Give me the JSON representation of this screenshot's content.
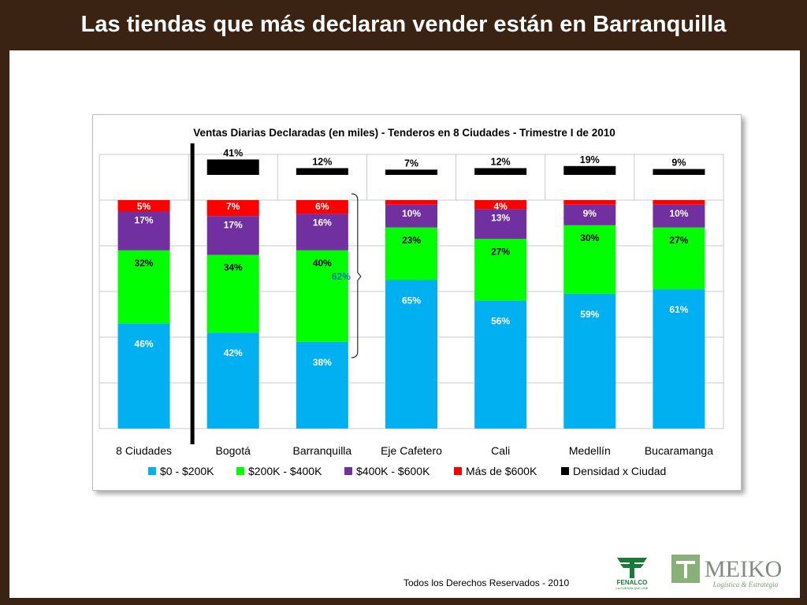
{
  "slide": {
    "title": "Las tiendas que más declaran vender están en Barranquilla",
    "footer": "Todos los Derechos Reservados - 2010",
    "logos": [
      {
        "name": "fenalco-logo",
        "text": "FENALCO",
        "tagline": "LA FUERZA QUE UNE"
      },
      {
        "name": "meiko-logo",
        "text": "MEIKO",
        "tagline": "Logística & Estrategia"
      }
    ]
  },
  "colors": {
    "background": "#3b2314",
    "s0": "#00b0f0",
    "s1": "#00ff00",
    "s2": "#7030a0",
    "s3": "#ff0000",
    "density": "#000000",
    "bracket_label": "#1f6fb5"
  },
  "chart_data": {
    "type": "bar",
    "stacked": true,
    "title": "Ventas Diarias Declaradas (en miles) - Tenderos en 8 Ciudades - Trimestre I de 2010",
    "categories": [
      "8 Ciudades",
      "Bogotá",
      "Barranquilla",
      "Eje Cafetero",
      "Cali",
      "Medellín",
      "Bucaramanga"
    ],
    "series": [
      {
        "name": "$0 - $200K",
        "color": "#00b0f0",
        "values": [
          46,
          42,
          38,
          65,
          56,
          59,
          61
        ]
      },
      {
        "name": "$200K - $400K",
        "color": "#00ff00",
        "values": [
          32,
          34,
          40,
          23,
          27,
          30,
          27
        ]
      },
      {
        "name": "$400K - $600K",
        "color": "#7030a0",
        "values": [
          17,
          17,
          16,
          10,
          13,
          9,
          10
        ]
      },
      {
        "name": "Más de $600K",
        "color": "#ff0000",
        "values": [
          5,
          7,
          6,
          2,
          4,
          2,
          2
        ]
      }
    ],
    "value_labels": [
      [
        "46%",
        "42%",
        "38%",
        "65%",
        "56%",
        "59%",
        "61%"
      ],
      [
        "32%",
        "34%",
        "40%",
        "23%",
        "27%",
        "30%",
        "27%"
      ],
      [
        "17%",
        "17%",
        "16%",
        "10%",
        "13%",
        "9%",
        "10%"
      ],
      [
        "5%",
        "7%",
        "6%",
        "",
        "4%",
        "",
        ""
      ]
    ],
    "density": {
      "name": "Densidad x Ciudad",
      "color": "#000000",
      "categories": [
        "Bogotá",
        "Barranquilla",
        "Eje Cafetero",
        "Cali",
        "Medellín",
        "Bucaramanga"
      ],
      "values": [
        41,
        12,
        7,
        12,
        19,
        9
      ],
      "labels": [
        "41%",
        "12%",
        "7%",
        "12%",
        "19%",
        "9%"
      ]
    },
    "annotation": {
      "text": "62%",
      "category": "Barranquilla"
    },
    "ylim": [
      0,
      100
    ],
    "grid": true,
    "legend": "bottom"
  }
}
